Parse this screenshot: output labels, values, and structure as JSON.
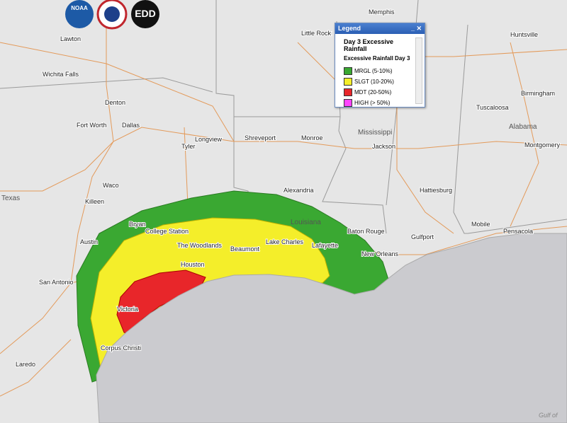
{
  "header": {
    "logos": [
      "NOAA",
      "EDD"
    ]
  },
  "legend": {
    "title": "Legend",
    "heading": "Day 3 Excessive Rainfall",
    "subheading": "Excessive Rainfall Day 3",
    "items": [
      {
        "label": "MRGL (5-10%)",
        "color": "#3aa832"
      },
      {
        "label": "SLGT (10-20%)",
        "color": "#f4ee2a"
      },
      {
        "label": "MDT (20-50%)",
        "color": "#e8262a"
      },
      {
        "label": "HIGH (> 50%)",
        "color": "#ff44ff"
      }
    ]
  },
  "map": {
    "labels": [
      "Memphis",
      "Little Rock",
      "Huntsville",
      "Lawton",
      "Wichita Falls",
      "Birmingham",
      "Tuscaloosa",
      "Denton",
      "Fort Worth",
      "Dallas",
      "Tyler",
      "Longview",
      "Shreveport",
      "Monroe",
      "Mississippi",
      "Jackson",
      "Alabama",
      "Montgomery",
      "Waco",
      "Killeen",
      "Texas",
      "Alexandria",
      "Hattiesburg",
      "Louisiana",
      "Bryan",
      "College Station",
      "Austin",
      "The Woodlands",
      "Beaumont",
      "Lake Charles",
      "Lafayette",
      "Baton Rouge",
      "New Orleans",
      "Gulfport",
      "Mobile",
      "Pensacola",
      "San Antonio",
      "Houston",
      "Victoria",
      "Corpus Christi",
      "Laredo",
      "Gulf of"
    ]
  }
}
